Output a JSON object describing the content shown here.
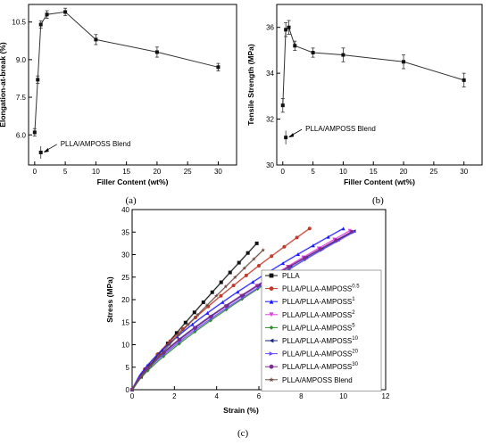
{
  "chart_data": [
    {
      "id": "a",
      "type": "line",
      "panel_label": "(a)",
      "xlabel": "Filler Content (wt%)",
      "ylabel": "Elongation-at-break (%)",
      "xlim": [
        -1,
        33
      ],
      "ylim": [
        4.8,
        11.2
      ],
      "xticks": [
        0,
        5,
        10,
        15,
        20,
        25,
        30
      ],
      "yticks": [
        6.0,
        7.5,
        9.0,
        10.5
      ],
      "ytick_labels": [
        "6.0",
        "7.5",
        "9.0",
        "10.5"
      ],
      "series": [
        {
          "x": [
            0,
            0.5,
            1,
            2,
            5,
            10,
            20,
            30
          ],
          "y": [
            6.1,
            8.2,
            10.4,
            10.8,
            10.9,
            9.8,
            9.3,
            8.7
          ],
          "err": [
            0.15,
            0.15,
            0.15,
            0.15,
            0.15,
            0.2,
            0.2,
            0.15
          ]
        }
      ],
      "blend": {
        "x": 1,
        "y": 5.3,
        "err": 0.25
      },
      "annotation": "PLLA/AMPOSS Blend"
    },
    {
      "id": "b",
      "type": "line",
      "panel_label": "(b)",
      "xlabel": "Filler Content (wt%)",
      "ylabel": "Tensile Strength (MPa)",
      "xlim": [
        -1,
        33
      ],
      "ylim": [
        30,
        37
      ],
      "xticks": [
        0,
        5,
        10,
        15,
        20,
        25,
        30
      ],
      "yticks": [
        30,
        32,
        34,
        36
      ],
      "ytick_labels": [
        "30",
        "32",
        "34",
        "36"
      ],
      "series": [
        {
          "x": [
            0,
            0.5,
            1,
            2,
            5,
            10,
            20,
            30
          ],
          "y": [
            32.6,
            35.9,
            36.0,
            35.2,
            34.9,
            34.8,
            34.5,
            33.7
          ],
          "err": [
            0.3,
            0.3,
            0.3,
            0.2,
            0.2,
            0.3,
            0.3,
            0.3
          ]
        }
      ],
      "blend": {
        "x": 0.5,
        "y": 31.2,
        "err": 0.3
      },
      "annotation": "PLLA/AMPOSS Blend"
    },
    {
      "id": "c",
      "type": "line",
      "panel_label": "(c)",
      "xlabel": "Strain (%)",
      "ylabel": "Stress (MPa)",
      "xlim": [
        0,
        12
      ],
      "ylim": [
        0,
        40
      ],
      "xticks": [
        0,
        2,
        4,
        6,
        8,
        10,
        12
      ],
      "yticks": [
        0,
        5,
        10,
        15,
        20,
        25,
        30,
        35,
        40
      ],
      "series": [
        {
          "name": "PLLA",
          "sup": "",
          "color": "#111111",
          "marker": "square",
          "end_x": 5.9,
          "end_y": 32.5,
          "exp": 0.92
        },
        {
          "name": "PLLA/PLLA-AMPOSS",
          "sup": "0.5",
          "color": "#c0392b",
          "marker": "circle",
          "end_x": 8.4,
          "end_y": 35.8,
          "exp": 0.78
        },
        {
          "name": "PLLA/PLLA-AMPOSS",
          "sup": "1",
          "color": "#1a1aff",
          "marker": "triangle-up",
          "end_x": 10.0,
          "end_y": 35.8,
          "exp": 0.72
        },
        {
          "name": "PLLA/PLLA-AMPOSS",
          "sup": "2",
          "color": "#e040e0",
          "marker": "triangle-down",
          "end_x": 10.3,
          "end_y": 35.3,
          "exp": 0.76
        },
        {
          "name": "PLLA/PLLA-AMPOSS",
          "sup": "5",
          "color": "#2e8b2e",
          "marker": "diamond",
          "end_x": 10.4,
          "end_y": 35.0,
          "exp": 0.8
        },
        {
          "name": "PLLA/PLLA-AMPOSS",
          "sup": "10",
          "color": "#1a237e",
          "marker": "triangle-left",
          "end_x": 10.5,
          "end_y": 35.2,
          "exp": 0.74
        },
        {
          "name": "PLLA/PLLA-AMPOSS",
          "sup": "20",
          "color": "#6a4cff",
          "marker": "triangle-right",
          "end_x": 10.5,
          "end_y": 35.0,
          "exp": 0.77
        },
        {
          "name": "PLLA/PLLA-AMPOSS",
          "sup": "30",
          "color": "#7b2d8e",
          "marker": "circle",
          "end_x": 10.4,
          "end_y": 35.1,
          "exp": 0.75
        },
        {
          "name": "PLLA/AMPOSS Blend",
          "sup": "",
          "color": "#6d4c41",
          "marker": "star",
          "end_x": 6.2,
          "end_y": 31.0,
          "exp": 0.9
        }
      ]
    }
  ]
}
